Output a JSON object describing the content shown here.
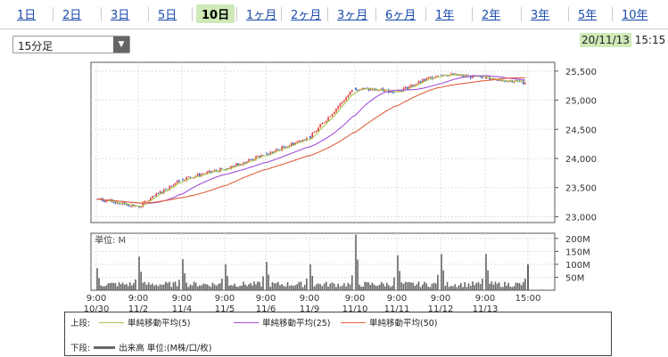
{
  "tabs": [
    "1日",
    "2日",
    "3日",
    "5日",
    "10日",
    "1ヶ月",
    "2ヶ月",
    "3ヶ月",
    "6ヶ月",
    "1年",
    "2年",
    "3年",
    "5年",
    "10年"
  ],
  "selected_tab": "10日",
  "interval_select": {
    "value": "15分足"
  },
  "datetime": {
    "date": "20/11/13",
    "time": "15:15"
  },
  "chart_data": [
    {
      "type": "line",
      "yticks": [
        "25,500",
        "25,000",
        "24,500",
        "24,000",
        "23,500",
        "23,000"
      ],
      "ylim": [
        22900,
        25650
      ],
      "xticks_time": [
        "9:00",
        "9:00",
        "9:00",
        "9:00",
        "9:00",
        "9:00",
        "9:00",
        "9:00",
        "9:00",
        "9:00",
        "15:00"
      ],
      "xticks_date": [
        "10/30",
        "11/2",
        "11/4",
        "11/5",
        "11/6",
        "11/9",
        "11/10",
        "11/11",
        "11/12",
        "11/13",
        ""
      ],
      "close_by_session": [
        23300,
        23180,
        23650,
        23820,
        24070,
        24370,
        25200,
        25150,
        25450,
        25380,
        25300
      ],
      "series": [
        {
          "name": "単純移動平均(5)",
          "color": "#a8c84a"
        },
        {
          "name": "単純移動平均(25)",
          "color": "#a050d8"
        },
        {
          "name": "単純移動平均(50)",
          "color": "#e0623a"
        }
      ],
      "labels": {
        "upper": "上段:"
      }
    },
    {
      "type": "bar",
      "unit_label": "単位: M",
      "yticks": [
        "200M",
        "150M",
        "100M",
        "50M"
      ],
      "ylim": [
        0,
        220
      ],
      "session_peaks": [
        85,
        130,
        120,
        100,
        110,
        100,
        215,
        135,
        140,
        140,
        100
      ],
      "legend": {
        "lower": "下段:",
        "name": "出来高 単位:(M株/口/枚)"
      }
    }
  ]
}
